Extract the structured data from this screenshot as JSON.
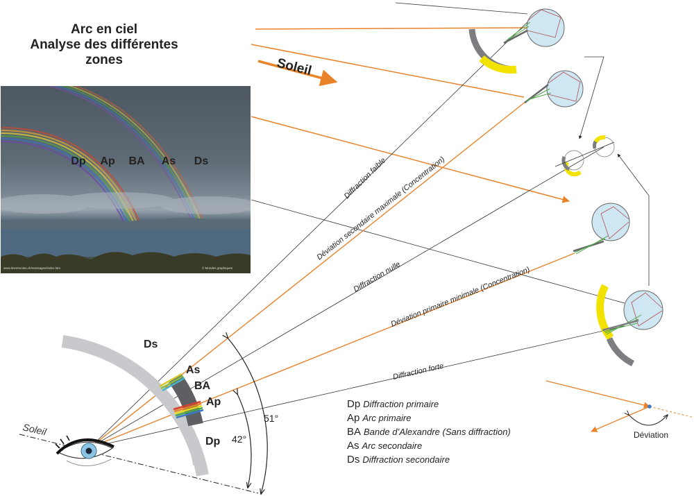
{
  "title": {
    "line1": "Arc en ciel",
    "line2": "Analyse des différentes zones"
  },
  "sun_arrow_label": "Soleil",
  "sun_axis_label": "Soleil",
  "photo": {
    "labels": [
      "Dp",
      "Ap",
      "BA",
      "As",
      "Ds"
    ],
    "credit_left": "www.lesrenvoies.ch/messages/index.htm",
    "credit_right": "© Mondes graphiques"
  },
  "rays": {
    "faible": "Diffraction faible",
    "dev_secondaire": "Déviation secondaire maximale (Concentration)",
    "nulle": "Diffraction nulle",
    "dev_primaire": "Déviation primaire minimale (Concentration)",
    "forte": "Diffraction forte"
  },
  "arc_labels": {
    "ds": "Ds",
    "as": "As",
    "ba": "BA",
    "ap": "Ap",
    "dp": "Dp"
  },
  "angles": {
    "primary": "42°",
    "secondary": "51°"
  },
  "legend": [
    {
      "abbr": "Dp",
      "desc": "Diffraction primaire"
    },
    {
      "abbr": "Ap",
      "desc": "Arc primaire"
    },
    {
      "abbr": "BA",
      "desc": "Bande d’Alexandre (Sans diffraction)"
    },
    {
      "abbr": "As",
      "desc": "Arc secondaire"
    },
    {
      "abbr": "Ds",
      "desc": "Diffraction secondaire"
    }
  ],
  "deviation_label": "Déviation",
  "colors": {
    "sun_ray": "#e8832a",
    "diffraction_band": "#7d7e81",
    "diffraction_light": "#c8c9cc",
    "concentration": "#f2e200",
    "droplet": "#cfe6f3"
  }
}
